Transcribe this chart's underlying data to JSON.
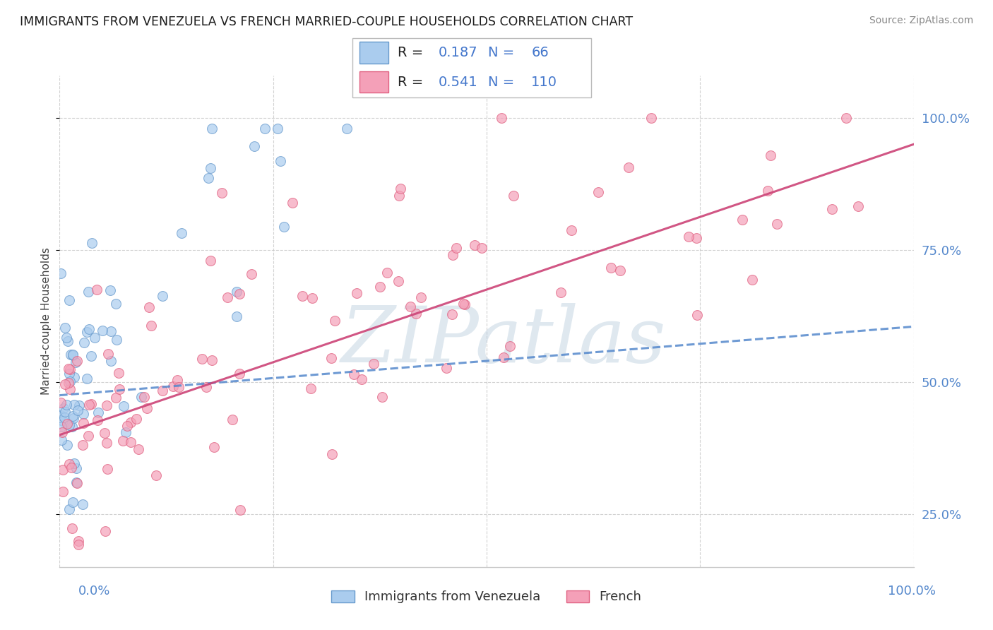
{
  "title": "IMMIGRANTS FROM VENEZUELA VS FRENCH MARRIED-COUPLE HOUSEHOLDS CORRELATION CHART",
  "source": "Source: ZipAtlas.com",
  "ylabel": "Married-couple Households",
  "legend_label1": "Immigrants from Venezuela",
  "legend_label2": "French",
  "R1": "0.187",
  "N1": "66",
  "R2": "0.541",
  "N2": "110",
  "color_blue": "#aaccee",
  "color_pink": "#f4a0b8",
  "edge_blue": "#6699cc",
  "edge_pink": "#e06080",
  "line_blue": "#5588cc",
  "line_pink": "#cc4477",
  "watermark_color": "#c8d8ef",
  "background_color": "#ffffff",
  "grid_color": "#cccccc",
  "xlim": [
    0.0,
    1.0
  ],
  "ylim": [
    0.15,
    1.08
  ],
  "yticks": [
    0.25,
    0.5,
    0.75,
    1.0
  ],
  "ytick_labels": [
    "25.0%",
    "50.0%",
    "75.0%",
    "100.0%"
  ]
}
